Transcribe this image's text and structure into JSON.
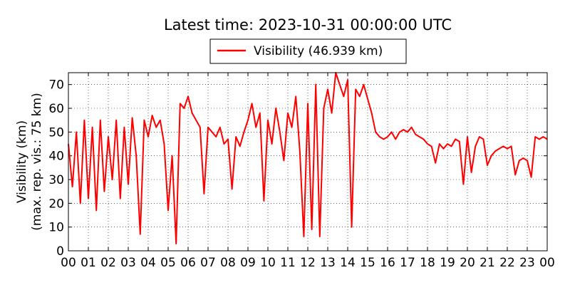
{
  "chart_data": {
    "type": "line",
    "title": "Latest time: 2023-10-31 00:00:00 UTC",
    "ylabel": [
      "Visibility (km)",
      "(max. rep. vis.: 75 km)"
    ],
    "xlim": [
      0,
      24
    ],
    "ylim": [
      0,
      75
    ],
    "xticks": [
      {
        "value": 0,
        "label": "00"
      },
      {
        "value": 1,
        "label": "01"
      },
      {
        "value": 2,
        "label": "02"
      },
      {
        "value": 3,
        "label": "03"
      },
      {
        "value": 4,
        "label": "04"
      },
      {
        "value": 5,
        "label": "05"
      },
      {
        "value": 6,
        "label": "06"
      },
      {
        "value": 7,
        "label": "07"
      },
      {
        "value": 8,
        "label": "08"
      },
      {
        "value": 9,
        "label": "09"
      },
      {
        "value": 10,
        "label": "10"
      },
      {
        "value": 11,
        "label": "11"
      },
      {
        "value": 12,
        "label": "12"
      },
      {
        "value": 13,
        "label": "13"
      },
      {
        "value": 14,
        "label": "14"
      },
      {
        "value": 15,
        "label": "15"
      },
      {
        "value": 16,
        "label": "16"
      },
      {
        "value": 17,
        "label": "17"
      },
      {
        "value": 18,
        "label": "18"
      },
      {
        "value": 19,
        "label": "19"
      },
      {
        "value": 20,
        "label": "20"
      },
      {
        "value": 21,
        "label": "21"
      },
      {
        "value": 22,
        "label": "22"
      },
      {
        "value": 23,
        "label": "23"
      },
      {
        "value": 24,
        "label": "00"
      }
    ],
    "yticks": [
      0,
      10,
      20,
      30,
      40,
      50,
      60,
      70
    ],
    "grid": true,
    "legend": "top",
    "x": [
      0,
      0.2,
      0.4,
      0.6,
      0.8,
      1,
      1.2,
      1.4,
      1.6,
      1.8,
      2,
      2.2,
      2.4,
      2.6,
      2.8,
      3,
      3.2,
      3.4,
      3.6,
      3.8,
      4,
      4.2,
      4.4,
      4.6,
      4.8,
      5,
      5.2,
      5.4,
      5.6,
      5.8,
      6,
      6.2,
      6.4,
      6.6,
      6.8,
      7,
      7.2,
      7.4,
      7.6,
      7.8,
      8,
      8.2,
      8.4,
      8.6,
      8.8,
      9,
      9.2,
      9.4,
      9.6,
      9.8,
      10,
      10.2,
      10.4,
      10.6,
      10.8,
      11,
      11.2,
      11.4,
      11.6,
      11.8,
      12,
      12.2,
      12.4,
      12.6,
      12.8,
      13,
      13.2,
      13.4,
      13.6,
      13.8,
      14,
      14.2,
      14.4,
      14.6,
      14.8,
      15,
      15.2,
      15.4,
      15.6,
      15.8,
      16,
      16.2,
      16.4,
      16.6,
      16.8,
      17,
      17.2,
      17.4,
      17.6,
      17.8,
      18,
      18.2,
      18.4,
      18.6,
      18.8,
      19,
      19.2,
      19.4,
      19.6,
      19.8,
      20,
      20.2,
      20.4,
      20.6,
      20.8,
      21,
      21.2,
      21.4,
      21.6,
      21.8,
      22,
      22.2,
      22.4,
      22.6,
      22.8,
      23,
      23.2,
      23.4,
      23.6,
      23.8,
      24
    ],
    "series": [
      {
        "name": "Visibility (46.939 km)",
        "color": "#ff0000",
        "values": [
          45,
          27,
          50,
          20,
          55,
          22,
          52,
          17,
          55,
          25,
          48,
          30,
          55,
          22,
          52,
          28,
          56,
          40,
          7,
          55,
          48,
          57,
          52,
          55,
          45,
          17,
          40,
          3,
          62,
          60,
          65,
          58,
          55,
          52,
          24,
          52,
          50,
          48,
          52,
          45,
          47,
          26,
          48,
          44,
          50,
          55,
          62,
          52,
          58,
          21,
          55,
          45,
          60,
          50,
          38,
          58,
          52,
          65,
          42,
          6,
          62,
          9,
          70,
          6,
          60,
          68,
          58,
          75,
          70,
          65,
          72,
          10,
          68,
          65,
          70,
          64,
          58,
          50,
          48,
          47,
          48,
          50,
          47,
          50,
          51,
          50,
          52,
          49,
          48,
          47,
          45,
          44,
          37,
          45,
          43,
          45,
          44,
          47,
          46,
          28,
          48,
          33,
          44,
          48,
          47,
          36,
          40,
          42,
          43,
          44,
          43,
          44,
          32,
          38,
          39,
          38,
          31,
          48,
          47,
          48,
          47
        ]
      }
    ]
  }
}
